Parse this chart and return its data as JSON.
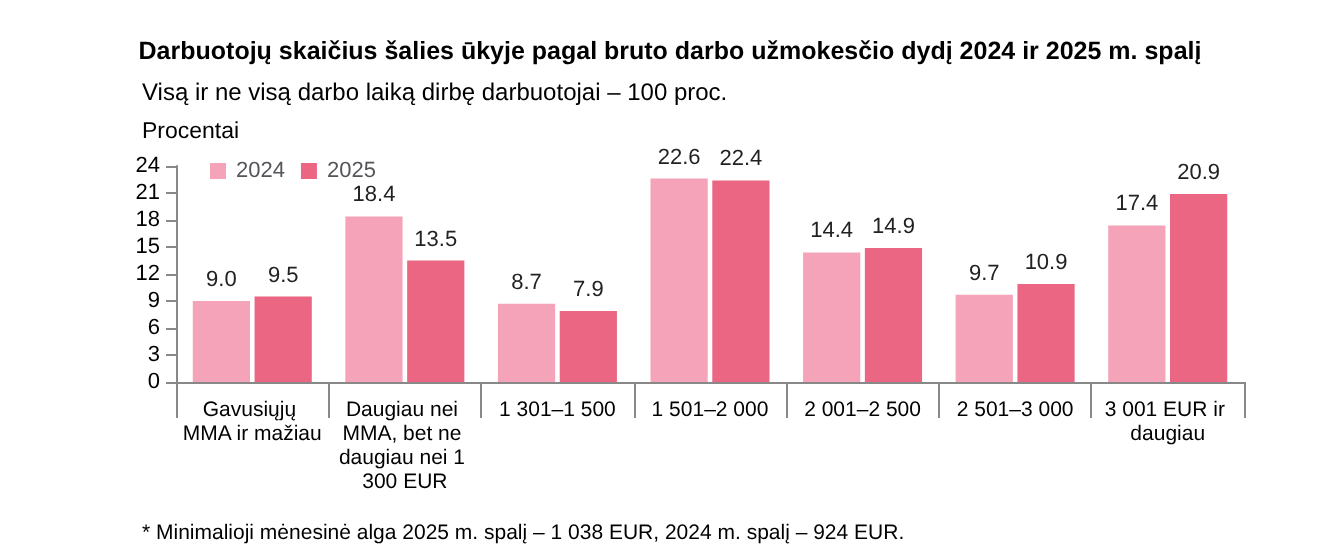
{
  "chart_data": {
    "type": "bar",
    "title": "Darbuotojų skaičius šalies ūkyje pagal bruto darbo užmokesčio dydį 2024 ir 2025 m. spalį",
    "subtitle": "Visą ir ne visą darbo laiką dirbę darbuotojai – 100 proc.",
    "ylabel": "Procentai",
    "categories": [
      "Gavusiųjų MMA ir mažiau",
      "Daugiau nei MMA, bet ne daugiau nei 1 300 EUR",
      "1 301–1 500",
      "1 501–2 000",
      "2 001–2 500",
      "2 501–3 000",
      "3 001 EUR ir daugiau"
    ],
    "series": [
      {
        "name": "2024",
        "color": "#f4a3b8",
        "values": [
          9.0,
          18.4,
          8.7,
          22.6,
          14.4,
          9.7,
          17.4
        ],
        "value_labels": [
          "9.0",
          "18.4",
          "8.7",
          "22.6",
          "14.4",
          "9.7",
          "17.4"
        ]
      },
      {
        "name": "2025",
        "color": "#ea6683",
        "values": [
          9.5,
          13.5,
          7.9,
          22.4,
          14.9,
          10.9,
          20.9
        ],
        "value_labels": [
          "9.5",
          "13.5",
          "7.9",
          "22.4",
          "14.9",
          "10.9",
          "20.9"
        ]
      }
    ],
    "ylim": [
      0,
      24
    ],
    "yticks": [
      0,
      3,
      6,
      9,
      12,
      15,
      18,
      21,
      24
    ],
    "grid": false,
    "legend": "top left",
    "annotations": [
      "* Minimalioji mėnesinė alga 2025 m. spalį – 1 038 EUR, 2024 m. spalį – 924 EUR."
    ]
  }
}
